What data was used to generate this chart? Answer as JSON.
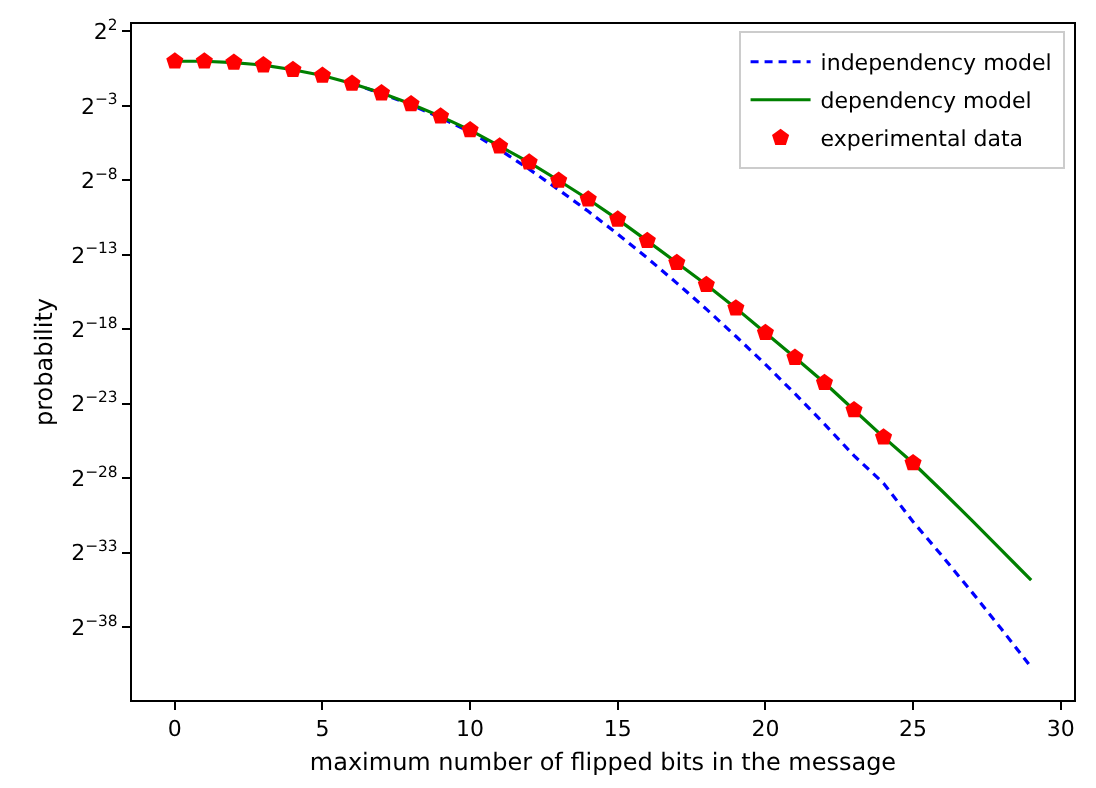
{
  "chart_data": {
    "type": "line",
    "xlabel": "maximum number of flipped bits in the message",
    "ylabel": "probability",
    "log": "y",
    "grid": false,
    "legend": "top right",
    "xlim": [
      -1.45,
      30.45
    ],
    "xticks": [
      0,
      5,
      10,
      15,
      20,
      25,
      30
    ],
    "ylim": [
      1.22e-13,
      5.66
    ],
    "yticks": [
      {
        "value": 4,
        "label": "2$^{2}$"
      },
      {
        "value": 0.125,
        "label": "2$^{−3}$"
      },
      {
        "value": 0.00390625,
        "label": "2$^{−8}$"
      },
      {
        "value": 0.0001220703125,
        "label": "2$^{−13}$"
      },
      {
        "value": 3.814697265625e-06,
        "label": "2$^{−18}$"
      },
      {
        "value": 1.1920928955078125e-07,
        "label": "2$^{−23}$"
      },
      {
        "value": 3.725290298461914e-09,
        "label": "2$^{−28}$"
      },
      {
        "value": 1.1641532182693481e-10,
        "label": "2$^{−33}$"
      },
      {
        "value": 3.637978807091713e-12,
        "label": "2$^{−38}$"
      }
    ],
    "series": [
      {
        "name": "independency model",
        "type": "line",
        "color": "#0000ff",
        "line_style": "dashed",
        "marker": "none",
        "x": [
          6,
          7,
          8,
          9,
          10,
          11,
          12,
          13,
          14,
          15,
          16,
          17,
          18,
          19,
          20,
          21,
          22,
          23,
          24,
          25,
          26,
          27,
          28,
          29
        ],
        "values": [
          0.354,
          0.222,
          0.132,
          0.0718,
          0.0372,
          0.0163,
          0.00657,
          0.00252,
          0.000924,
          0.00032,
          0.000105,
          3.27e-05,
          9.73e-06,
          2.75e-06,
          7.43e-07,
          1.9e-07,
          4.61e-08,
          1.06e-08,
          2.94e-09,
          4.89e-10,
          9.72e-11,
          1.83e-11,
          3.28e-12,
          5.6e-13
        ]
      },
      {
        "name": "dependency model",
        "type": "line",
        "color": "#008000",
        "line_style": "solid",
        "marker": "none",
        "x": [
          0,
          1,
          2,
          3,
          4,
          5,
          6,
          7,
          8,
          9,
          10,
          11,
          12,
          13,
          14,
          15,
          16,
          17,
          18,
          19,
          20,
          21,
          22,
          23,
          24,
          25,
          26,
          27,
          28,
          29
        ],
        "values": [
          1,
          1,
          0.939,
          0.835,
          0.674,
          0.514,
          0.356,
          0.227,
          0.137,
          0.0769,
          0.0406,
          0.0192,
          0.00905,
          0.00388,
          0.00162,
          0.000636,
          0.000234,
          8.46e-05,
          3.03e-05,
          1.02e-05,
          3.23e-06,
          1.02e-06,
          3.17e-07,
          8.91e-08,
          2.51e-08,
          7.55e-09,
          2e-09,
          5.17e-10,
          1.29e-10,
          3.23e-11
        ]
      },
      {
        "name": "experimental data",
        "type": "scatter",
        "color": "#ff0000",
        "marker": "circle",
        "x": [
          0,
          1,
          2,
          3,
          4,
          5,
          6,
          7,
          8,
          9,
          10,
          11,
          12,
          13,
          14,
          15,
          16,
          17,
          18,
          19,
          20,
          21,
          22,
          23,
          24,
          25
        ],
        "values": [
          1,
          1,
          0.939,
          0.835,
          0.674,
          0.514,
          0.356,
          0.227,
          0.137,
          0.0769,
          0.0406,
          0.0192,
          0.00905,
          0.00388,
          0.00162,
          0.000636,
          0.000234,
          8.46e-05,
          3.03e-05,
          1.02e-05,
          3.23e-06,
          1.02e-06,
          3.17e-07,
          8.91e-08,
          2.51e-08,
          7.55e-09
        ]
      }
    ]
  }
}
